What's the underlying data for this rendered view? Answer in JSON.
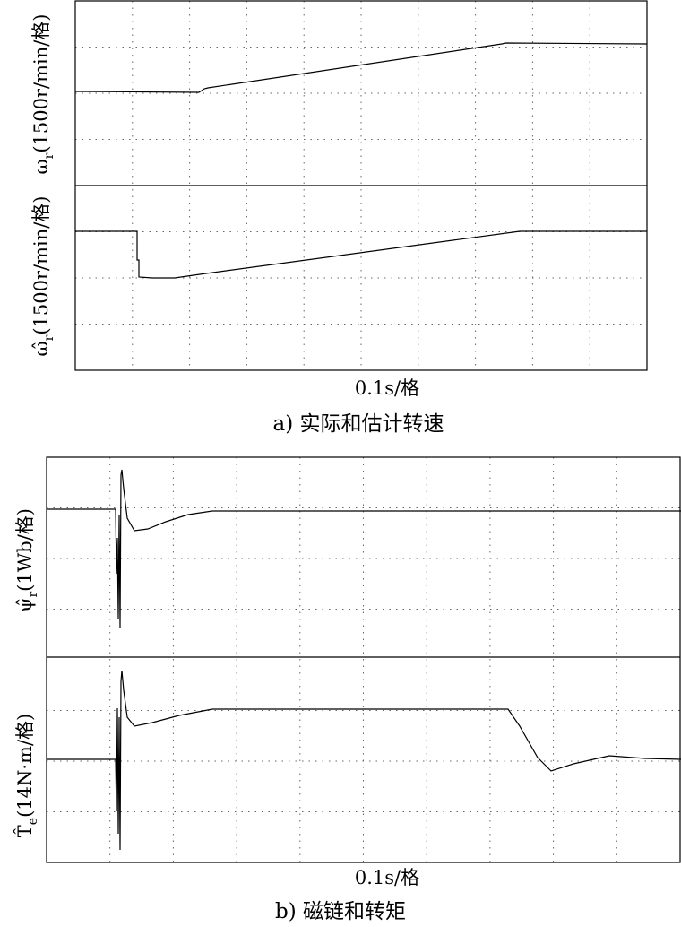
{
  "panel_a": {
    "top_label": {
      "symbol": "ω",
      "subscript": "r",
      "unit": "(1500r/min/格)"
    },
    "bottom_label": {
      "symbol": "ω̂",
      "subscript": "r",
      "unit": "(1500r/min/格)"
    },
    "x_label": "0.1s/格",
    "caption": "a) 实际和估计转速"
  },
  "panel_b": {
    "top_label": {
      "symbol": "ψ̂",
      "subscript": "r",
      "unit": "(1Wb/格)"
    },
    "bottom_label": {
      "symbol": "T̂",
      "subscript": "e",
      "unit": "(14N·m/格)"
    },
    "x_label": "0.1s/格",
    "caption": "b) 磁链和转矩"
  }
}
